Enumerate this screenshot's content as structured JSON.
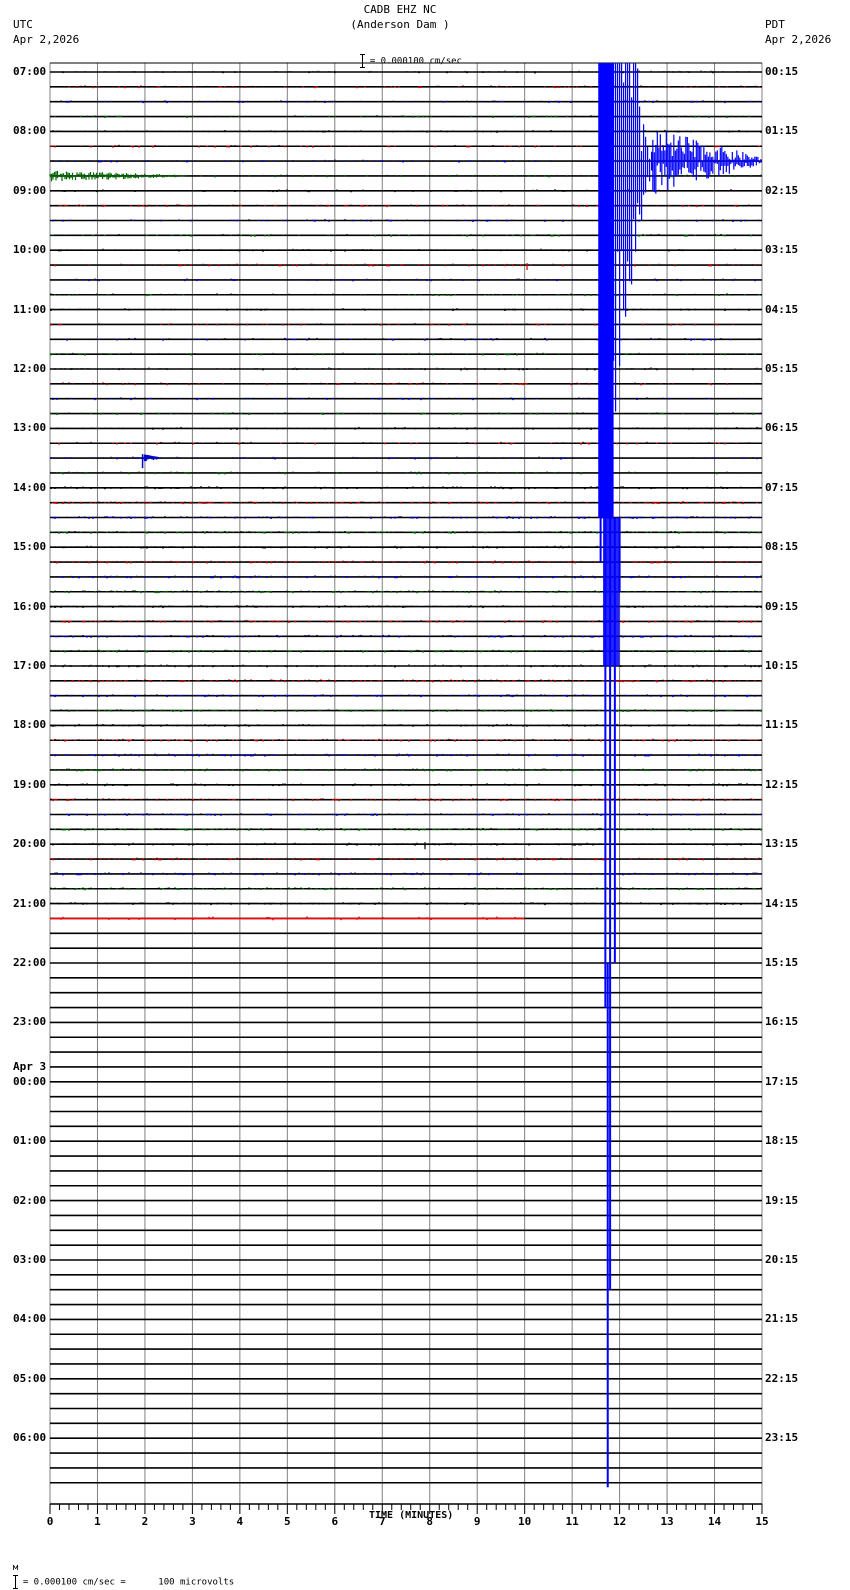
{
  "header": {
    "station": "CADB EHZ NC",
    "location": "(Anderson Dam )",
    "left_tz": "UTC",
    "left_date": "Apr 2,2026",
    "right_tz": "PDT",
    "right_date": "Apr 2,2026",
    "scale_text": "= 0.000100 cm/sec"
  },
  "footer": {
    "prefix": "м",
    "scale_text": "= 0.000100 cm/sec =      100 microvolts"
  },
  "colors": {
    "trace_cycle": [
      "#000000",
      "#cc0000",
      "#0000cc",
      "#006600"
    ],
    "grid": "#808080",
    "baseline": "#000000",
    "event": "#0000ff",
    "partial_trace": "#ff0000"
  },
  "chart_data": {
    "type": "line",
    "title": "CADB EHZ NC (Anderson Dam )",
    "subtitle": "= 0.000100 cm/sec",
    "xlabel": "TIME (MINUTES)",
    "ylabel": "",
    "xlim": [
      0,
      15
    ],
    "x_ticks": [
      "0",
      "1",
      "2",
      "3",
      "4",
      "5",
      "6",
      "7",
      "8",
      "9",
      "10",
      "11",
      "12",
      "13",
      "14",
      "15"
    ],
    "minor_ticks_per_minute": 5,
    "grid": true,
    "traces_per_hour": 4,
    "total_traces": 96,
    "left_labels": [
      {
        "row": 0,
        "text": "07:00"
      },
      {
        "row": 4,
        "text": "08:00"
      },
      {
        "row": 8,
        "text": "09:00"
      },
      {
        "row": 12,
        "text": "10:00"
      },
      {
        "row": 16,
        "text": "11:00"
      },
      {
        "row": 20,
        "text": "12:00"
      },
      {
        "row": 24,
        "text": "13:00"
      },
      {
        "row": 28,
        "text": "14:00"
      },
      {
        "row": 32,
        "text": "15:00"
      },
      {
        "row": 36,
        "text": "16:00"
      },
      {
        "row": 40,
        "text": "17:00"
      },
      {
        "row": 44,
        "text": "18:00"
      },
      {
        "row": 48,
        "text": "19:00"
      },
      {
        "row": 52,
        "text": "20:00"
      },
      {
        "row": 56,
        "text": "21:00"
      },
      {
        "row": 60,
        "text": "22:00"
      },
      {
        "row": 64,
        "text": "23:00"
      },
      {
        "row": 68,
        "text": "00:00",
        "date": "Apr 3"
      },
      {
        "row": 72,
        "text": "01:00"
      },
      {
        "row": 76,
        "text": "02:00"
      },
      {
        "row": 80,
        "text": "03:00"
      },
      {
        "row": 84,
        "text": "04:00"
      },
      {
        "row": 88,
        "text": "05:00"
      },
      {
        "row": 92,
        "text": "06:00"
      }
    ],
    "right_labels": [
      "00:15",
      "01:15",
      "02:15",
      "03:15",
      "04:15",
      "05:15",
      "06:15",
      "07:15",
      "08:15",
      "09:15",
      "10:15",
      "11:15",
      "12:15",
      "13:15",
      "14:15",
      "15:15",
      "16:15",
      "17:15",
      "18:15",
      "19:15",
      "20:15",
      "21:15",
      "22:15",
      "23:15"
    ],
    "recorded_traces": 58,
    "last_trace_end_minute": 10.0,
    "events": [
      {
        "name": "large earthquake",
        "utc": "08:30",
        "trace_row": 6,
        "start_minute": 11.55,
        "saturated_until_minute": 12.0,
        "coda_end_minute": 15.0,
        "clipped_rows_up": 6,
        "tail_extends_to_row": 95,
        "tail_minute": 11.75
      },
      {
        "name": "regional event",
        "utc": "08:45",
        "trace_row": 7,
        "start_minute": 0.0,
        "end_minute": 2.9,
        "color": "#006600"
      },
      {
        "name": "small local event",
        "utc": "13:30",
        "trace_row": 26,
        "start_minute": 1.95,
        "end_minute": 2.3
      },
      {
        "name": "spike",
        "utc": "10:15",
        "trace_row": 13,
        "minute": 10.05
      },
      {
        "name": "spike",
        "utc": "20:00",
        "trace_row": 52,
        "minute": 7.9
      }
    ]
  }
}
